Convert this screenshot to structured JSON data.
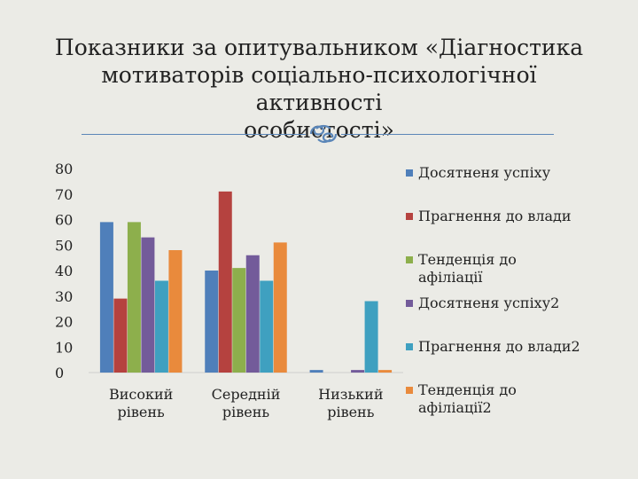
{
  "slide": {
    "title_lines": [
      "Показники за опитувальником «Діагностика",
      "мотиваторів соціально-психологічної активності",
      "особистості»"
    ]
  },
  "chart_data": {
    "type": "bar",
    "categories": [
      [
        "Високий",
        "рівень"
      ],
      [
        "Середній",
        "рівень"
      ],
      [
        "Низький",
        "рівень"
      ]
    ],
    "ylim": [
      0,
      80
    ],
    "yticks": [
      0,
      10,
      20,
      30,
      40,
      50,
      60,
      70,
      80
    ],
    "grid": false,
    "legend_position": "right",
    "series": [
      {
        "name": [
          "Досятненя успіху"
        ],
        "values": [
          59,
          40,
          1
        ],
        "color": "#4f7fba"
      },
      {
        "name": [
          "Прагнення до влади"
        ],
        "values": [
          29,
          71,
          0
        ],
        "color": "#b5423f"
      },
      {
        "name": [
          "Тенденція до",
          "афіліації"
        ],
        "values": [
          59,
          41,
          0
        ],
        "color": "#8daf4c"
      },
      {
        "name": [
          "Досятненя успіху2"
        ],
        "values": [
          53,
          46,
          1
        ],
        "color": "#735b9a"
      },
      {
        "name": [
          "Прагнення до влади2"
        ],
        "values": [
          36,
          36,
          28
        ],
        "color": "#3fa0c0"
      },
      {
        "name": [
          "Тенденція до",
          "афіліації2"
        ],
        "values": [
          48,
          51,
          1
        ],
        "color": "#e98a3c"
      }
    ]
  }
}
